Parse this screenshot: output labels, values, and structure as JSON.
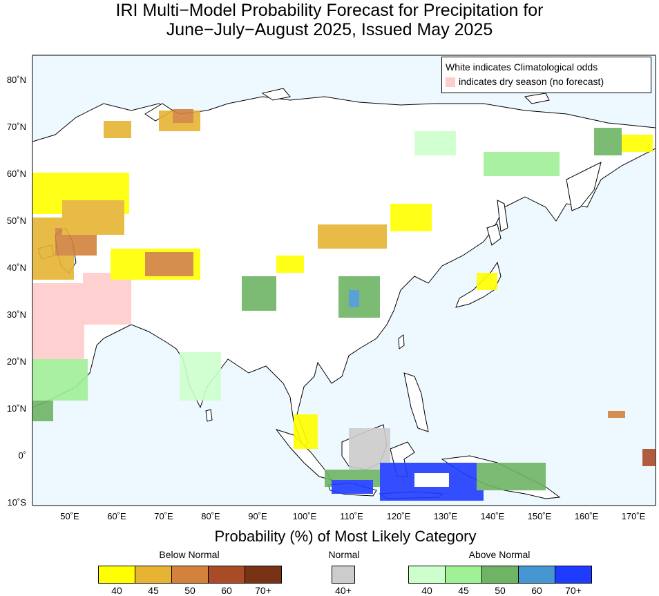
{
  "title": {
    "line1": "IRI Multi−Model Probability Forecast for Precipitation for",
    "line2": "June−July−August 2025, Issued May 2025"
  },
  "map_legend": {
    "line1": "White indicates Climatological odds",
    "line2": "indicates dry season (no forecast)",
    "dry_color": "#ffcccc"
  },
  "axes": {
    "lat_ticks": [
      "80˚N",
      "70˚N",
      "60˚N",
      "50˚N",
      "40˚N",
      "30˚N",
      "20˚N",
      "10˚N",
      "0˚",
      "10˚S"
    ],
    "lon_ticks": [
      "50˚E",
      "60˚E",
      "70˚E",
      "80˚E",
      "90˚E",
      "100˚E",
      "110˚E",
      "120˚E",
      "130˚E",
      "140˚E",
      "150˚E",
      "160˚E",
      "170˚E"
    ]
  },
  "colorbar": {
    "title": "Probability (%) of Most Likely Category",
    "below": {
      "label": "Below Normal",
      "colors": [
        "#ffff00",
        "#e6b432",
        "#d2823c",
        "#aa4b28",
        "#783214"
      ],
      "ticks": [
        "40",
        "45",
        "50",
        "60",
        "70+"
      ]
    },
    "normal": {
      "label": "Normal",
      "colors": [
        "#cccccc"
      ],
      "ticks": [
        "40+"
      ]
    },
    "above": {
      "label": "Above Normal",
      "colors": [
        "#ccffcc",
        "#a0f096",
        "#6eb464",
        "#4696d2",
        "#1e3cff"
      ],
      "ticks": [
        "40",
        "45",
        "50",
        "60",
        "70+"
      ]
    }
  },
  "colors": {
    "ocean": "#eef8ff",
    "land": "#ffffff"
  }
}
